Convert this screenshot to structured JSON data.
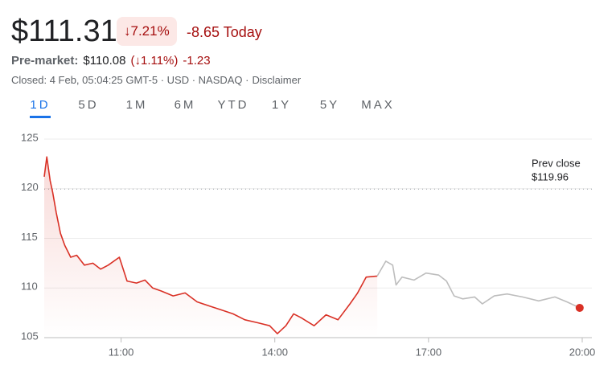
{
  "header": {
    "price": "$111.31",
    "change_pct": "↓7.21%",
    "change_today": "-8.65 Today",
    "premarket_label": "Pre-market:",
    "premarket_price": "$110.08",
    "premarket_pct": "(↓1.11%)",
    "premarket_change": "-1.23",
    "status": "Closed: 4 Feb, 05:04:25 GMT-5 · USD · NASDAQ ·",
    "disclaimer": "Disclaimer"
  },
  "tabs": [
    "1D",
    "5D",
    "1M",
    "6M",
    "YTD",
    "1Y",
    "5Y",
    "MAX"
  ],
  "selected_tab": "1D",
  "chart_data": {
    "type": "line",
    "xlim": [
      570,
      1200
    ],
    "xticks": [
      {
        "value": 660,
        "label": "11:00"
      },
      {
        "value": 840,
        "label": "14:00"
      },
      {
        "value": 1020,
        "label": "17:00"
      },
      {
        "value": 1200,
        "label": "20:00"
      }
    ],
    "ylim": [
      105,
      125
    ],
    "yticks": [
      105,
      110,
      115,
      120,
      125
    ],
    "grid": true,
    "series": [
      {
        "color": "#d93025",
        "fill": true,
        "x": [
          570,
          573,
          577,
          580,
          584,
          589,
          594,
          601,
          608,
          617,
          627,
          636,
          645,
          658,
          667,
          678,
          688,
          697,
          707,
          721,
          735,
          749,
          763,
          777,
          791,
          805,
          820,
          834,
          843,
          853,
          862,
          871,
          886,
          900,
          914,
          928,
          937,
          947,
          960
        ],
        "values": [
          121.2,
          123.2,
          120.8,
          119.6,
          117.6,
          115.5,
          114.3,
          113.1,
          113.3,
          112.3,
          112.5,
          111.9,
          112.3,
          113.1,
          110.7,
          110.5,
          110.8,
          110.0,
          109.7,
          109.2,
          109.5,
          108.6,
          108.2,
          107.8,
          107.4,
          106.8,
          106.5,
          106.2,
          105.4,
          106.2,
          107.4,
          107.0,
          106.2,
          107.3,
          106.8,
          108.4,
          109.5,
          111.1,
          111.2
        ]
      },
      {
        "color": "#bdbdbd",
        "fill": false,
        "x": [
          960,
          970,
          978,
          982,
          989,
          1003,
          1017,
          1032,
          1041,
          1050,
          1060,
          1074,
          1083,
          1097,
          1112,
          1130,
          1149,
          1168,
          1182,
          1197
        ],
        "values": [
          111.2,
          112.7,
          112.3,
          110.3,
          111.1,
          110.8,
          111.5,
          111.3,
          110.7,
          109.2,
          108.9,
          109.1,
          108.4,
          109.2,
          109.4,
          109.1,
          108.7,
          109.1,
          108.6,
          108.0
        ]
      }
    ],
    "end_marker_color": "#d93025",
    "reference_line": {
      "value": 119.96,
      "label": "Prev close",
      "value_label": "$119.96"
    }
  }
}
